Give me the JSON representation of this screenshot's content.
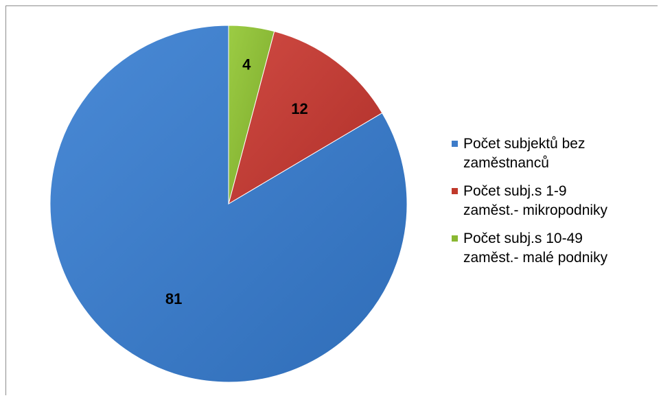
{
  "chart_data": {
    "type": "pie",
    "categories": [
      "Počet subjektů bez zaměstnanců",
      "Počet subj.s 1-9 zaměst.- mikropodniky",
      "Počet subj.s 10-49 zaměst.- malé podniky"
    ],
    "values": [
      81,
      12,
      4
    ],
    "data_labels": [
      "81",
      "12",
      "4"
    ],
    "colors": [
      "#3d7cc9",
      "#c0392b",
      "#8ab832"
    ],
    "legend": {
      "placement": "right",
      "entries": [
        {
          "text": "Počet subjektů bez\nzaměstnanců",
          "color": "#3d7cc9"
        },
        {
          "text": "Počet subj.s 1-9\nzaměst.- mikropodniky",
          "color": "#c0392b"
        },
        {
          "text": "Počet subj.s 10-49\nzaměst.- malé podniky",
          "color": "#8ab832"
        }
      ]
    },
    "title": "",
    "start_angle": "12 o'clock, counter-clockwise"
  }
}
